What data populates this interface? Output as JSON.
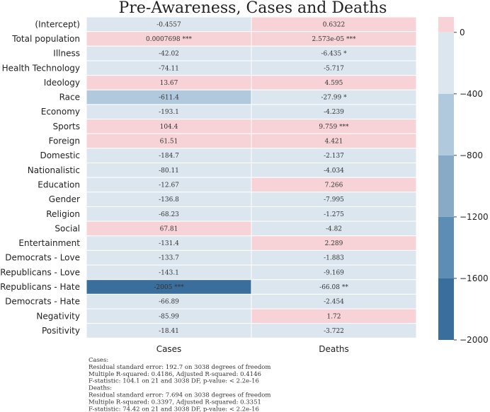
{
  "chart_data": {
    "type": "heatmap",
    "title": "Pre-Awareness, Cases and Deaths",
    "columns": [
      "Cases",
      "Deaths"
    ],
    "rows": [
      {
        "label": "(Intercept)",
        "values": [
          -0.4557,
          0.6322
        ],
        "display": [
          "-0.4557",
          "0.6322"
        ]
      },
      {
        "label": "Total population",
        "values": [
          0.0007698,
          2.573e-05
        ],
        "display": [
          "0.0007698 ***",
          "2.573e-05 ***"
        ]
      },
      {
        "label": "Illness",
        "values": [
          -42.02,
          -6.435
        ],
        "display": [
          "-42.02",
          "-6.435 *"
        ]
      },
      {
        "label": "Health Technology",
        "values": [
          -74.11,
          -5.717
        ],
        "display": [
          "-74.11",
          "-5.717"
        ]
      },
      {
        "label": "Ideology",
        "values": [
          13.67,
          4.595
        ],
        "display": [
          "13.67",
          "4.595"
        ]
      },
      {
        "label": "Race",
        "values": [
          -611.4,
          -27.99
        ],
        "display": [
          "-611.4",
          "-27.99 *"
        ]
      },
      {
        "label": "Economy",
        "values": [
          -193.1,
          -4.239
        ],
        "display": [
          "-193.1",
          "-4.239"
        ]
      },
      {
        "label": "Sports",
        "values": [
          104.4,
          9.759
        ],
        "display": [
          "104.4",
          "9.759 ***"
        ]
      },
      {
        "label": "Foreign",
        "values": [
          61.51,
          4.421
        ],
        "display": [
          "61.51",
          "4.421"
        ]
      },
      {
        "label": "Domestic",
        "values": [
          -184.7,
          -2.137
        ],
        "display": [
          "-184.7",
          "-2.137"
        ]
      },
      {
        "label": "Nationalistic",
        "values": [
          -80.11,
          -4.034
        ],
        "display": [
          "-80.11",
          "-4.034"
        ]
      },
      {
        "label": "Education",
        "values": [
          -12.67,
          7.266
        ],
        "display": [
          "-12.67",
          "7.266"
        ]
      },
      {
        "label": "Gender",
        "values": [
          -136.8,
          -7.995
        ],
        "display": [
          "-136.8",
          "-7.995"
        ]
      },
      {
        "label": "Religion",
        "values": [
          -68.23,
          -1.275
        ],
        "display": [
          "-68.23",
          "-1.275"
        ]
      },
      {
        "label": "Social",
        "values": [
          67.81,
          -4.82
        ],
        "display": [
          "67.81",
          "-4.82"
        ]
      },
      {
        "label": "Entertainment",
        "values": [
          -131.4,
          2.289
        ],
        "display": [
          "-131.4",
          "2.289"
        ]
      },
      {
        "label": "Democrats - Love",
        "values": [
          -133.7,
          -1.883
        ],
        "display": [
          "-133.7",
          "-1.883"
        ]
      },
      {
        "label": "Republicans - Love",
        "values": [
          -143.1,
          -9.169
        ],
        "display": [
          "-143.1",
          "-9.169"
        ]
      },
      {
        "label": "Republicans - Hate",
        "values": [
          -2005,
          -66.08
        ],
        "display": [
          "-2005 ***",
          "-66.08 **"
        ]
      },
      {
        "label": "Democrats - Hate",
        "values": [
          -66.89,
          -2.454
        ],
        "display": [
          "-66.89",
          "-2.454"
        ]
      },
      {
        "label": "Negativity",
        "values": [
          -85.99,
          1.72
        ],
        "display": [
          "-85.99",
          "1.72"
        ]
      },
      {
        "label": "Positivity",
        "values": [
          -18.41,
          -3.722
        ],
        "display": [
          "-18.41",
          "-3.722"
        ]
      }
    ],
    "colorbar": {
      "range": [
        -2000,
        100
      ],
      "ticks": [
        0,
        -400,
        -800,
        -1200,
        -1600,
        -2000
      ],
      "tick_labels": [
        "0",
        "−400",
        "−800",
        "−1200",
        "−1600",
        "−2000"
      ],
      "bins": [
        {
          "from": 0,
          "to": 100,
          "color": "#f7d3d7"
        },
        {
          "from": -400,
          "to": 0,
          "color": "#dce6ef"
        },
        {
          "from": -800,
          "to": -400,
          "color": "#b0c9dd"
        },
        {
          "from": -1200,
          "to": -800,
          "color": "#88aac6"
        },
        {
          "from": -1600,
          "to": -1200,
          "color": "#5d8db4"
        },
        {
          "from": -2000,
          "to": -1600,
          "color": "#3a6e9c"
        }
      ]
    },
    "notes": [
      "Cases:",
      "Residual standard error: 192.7 on 3038 degrees of freedom",
      "Multiple R-squared: 0.4186, Adjusted R-squared: 0.4146",
      "F-statistic: 104.1 on 21 and 3038 DF,  p-value: < 2.2e-16",
      "Deaths:",
      "Residual standard error: 7.694 on 3038 degrees of freedom",
      "Multiple R-squared: 0.3397, Adjusted R-squared: 0.3351",
      "F-statistic: 74.42 on 21 and 3038 DF,  p-value: < 2.2e-16"
    ]
  }
}
